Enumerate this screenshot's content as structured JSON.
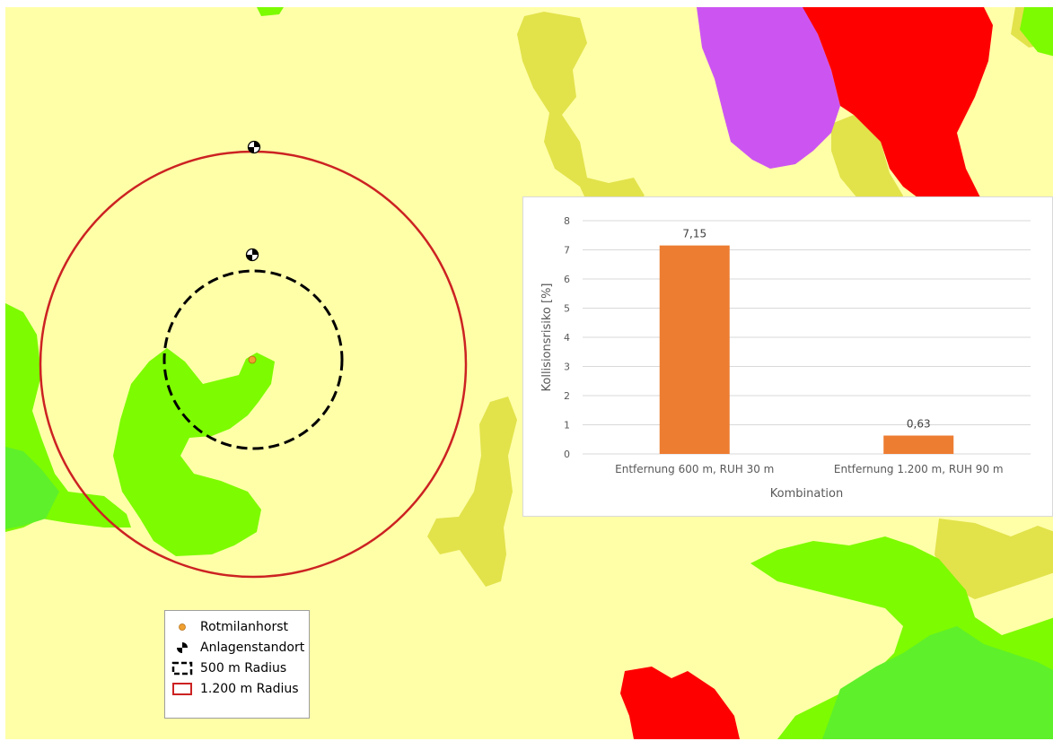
{
  "colors": {
    "background_land": "#ffffa8",
    "yellow_patch": "#e2e24b",
    "green_light": "#7dfb00",
    "green_dark": "#5ef02a",
    "purple_patch": "#cc55f2",
    "red_patch": "#ff0000",
    "buffer_1200": "#cc2222",
    "buffer_500": "#000000",
    "nest_marker": "#f0a030",
    "bar_color": "#ed7d31"
  },
  "legend": {
    "items": [
      {
        "label": "Rotmilanhorst",
        "icon": "orange-dot-icon"
      },
      {
        "label": "Anlagenstandort",
        "icon": "wind-turbine-icon"
      },
      {
        "label": "500 m Radius",
        "icon": "dashed-square-icon"
      },
      {
        "label": "1.200 m Radius",
        "icon": "red-square-icon"
      }
    ]
  },
  "chart_data": {
    "type": "bar",
    "categories": [
      "Entfernung 600 m, RUH 30 m",
      "Entfernung 1.200 m, RUH 90 m"
    ],
    "values": [
      7.15,
      0.63
    ],
    "data_labels": [
      "7,15",
      "0,63"
    ],
    "title": "",
    "xlabel": "Kombination",
    "ylabel": "Kollisionsrisiko [%]",
    "ylim": [
      0,
      8
    ],
    "yticks": [
      "0",
      "1",
      "2",
      "3",
      "4",
      "5",
      "6",
      "7",
      "8"
    ],
    "grid": true,
    "legend": "none"
  }
}
